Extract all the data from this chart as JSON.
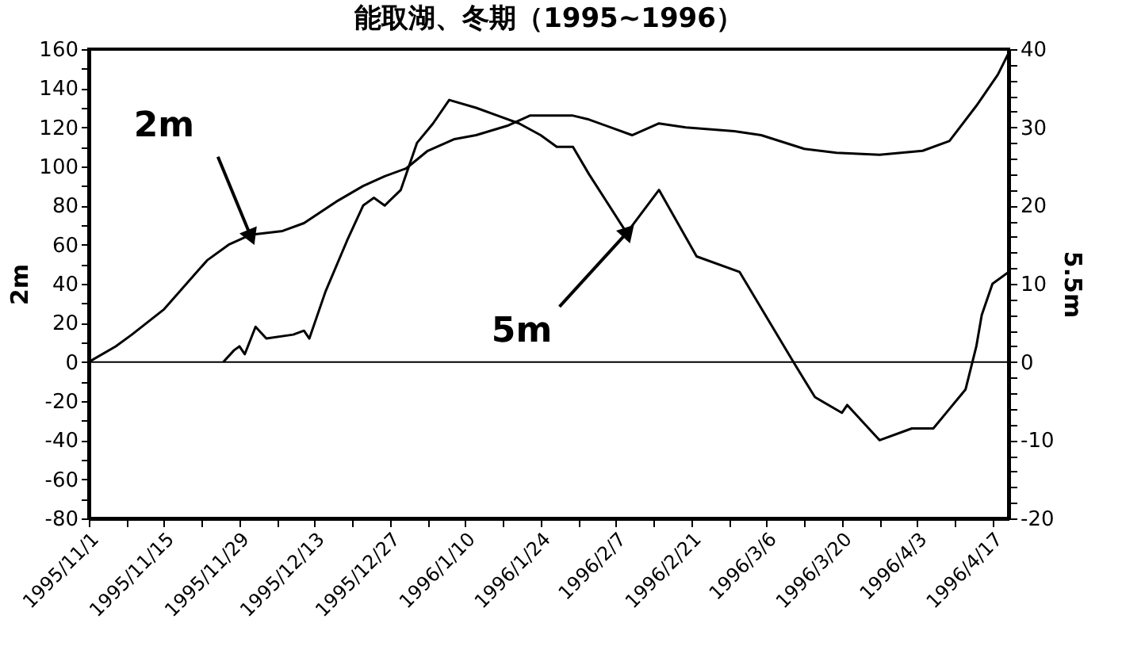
{
  "chart_data": {
    "type": "line",
    "title": "能取湖、冬期（1995~1996）",
    "ylabel": "2m",
    "y2label": "5.5m",
    "xlim": [
      "1995-11-01",
      "1996-04-20"
    ],
    "xticks": [
      {
        "value": "1995-11-01",
        "label": "1995/11/1"
      },
      {
        "value": "1995-11-08",
        "label": null
      },
      {
        "value": "1995-11-15",
        "label": "1995/11/15"
      },
      {
        "value": "1995-11-22",
        "label": null
      },
      {
        "value": "1995-11-29",
        "label": "1995/11/29"
      },
      {
        "value": "1995-12-06",
        "label": null
      },
      {
        "value": "1995-12-13",
        "label": "1995/12/13"
      },
      {
        "value": "1995-12-20",
        "label": null
      },
      {
        "value": "1995-12-27",
        "label": "1995/12/27"
      },
      {
        "value": "1996-01-03",
        "label": null
      },
      {
        "value": "1996-01-10",
        "label": "1996/1/10"
      },
      {
        "value": "1996-01-17",
        "label": null
      },
      {
        "value": "1996-01-24",
        "label": "1996/1/24"
      },
      {
        "value": "1996-01-31",
        "label": null
      },
      {
        "value": "1996-02-07",
        "label": "1996/2/7"
      },
      {
        "value": "1996-02-14",
        "label": null
      },
      {
        "value": "1996-02-21",
        "label": "1996/2/21"
      },
      {
        "value": "1996-02-28",
        "label": null
      },
      {
        "value": "1996-03-06",
        "label": "1996/3/6"
      },
      {
        "value": "1996-03-13",
        "label": null
      },
      {
        "value": "1996-03-20",
        "label": "1996/3/20"
      },
      {
        "value": "1996-03-27",
        "label": null
      },
      {
        "value": "1996-04-03",
        "label": "1996/4/3"
      },
      {
        "value": "1996-04-10",
        "label": null
      },
      {
        "value": "1996-04-17",
        "label": "1996/4/17"
      }
    ],
    "ylim": [
      -80,
      160
    ],
    "yticks": [
      -80,
      {
        "value": -70,
        "label": null
      },
      -60,
      {
        "value": -50,
        "label": null
      },
      -40,
      {
        "value": -30,
        "label": null
      },
      -20,
      {
        "value": -10,
        "label": null
      },
      0,
      {
        "value": 10,
        "label": null
      },
      20,
      {
        "value": 30,
        "label": null
      },
      40,
      {
        "value": 50,
        "label": null
      },
      60,
      {
        "value": 70,
        "label": null
      },
      80,
      {
        "value": 90,
        "label": null
      },
      100,
      {
        "value": 110,
        "label": null
      },
      120,
      {
        "value": 130,
        "label": null
      },
      140,
      {
        "value": 150,
        "label": null
      },
      160
    ],
    "y2lim": [
      -20,
      40
    ],
    "y2ticks": [
      -20,
      {
        "value": -18,
        "label": null
      },
      {
        "value": -16,
        "label": null
      },
      {
        "value": -14,
        "label": null
      },
      {
        "value": -12,
        "label": null
      },
      -10,
      {
        "value": -8,
        "label": null
      },
      {
        "value": -6,
        "label": null
      },
      {
        "value": -4,
        "label": null
      },
      {
        "value": -2,
        "label": null
      },
      0,
      {
        "value": 2,
        "label": null
      },
      {
        "value": 4,
        "label": null
      },
      {
        "value": 6,
        "label": null
      },
      {
        "value": 8,
        "label": null
      },
      10,
      {
        "value": 12,
        "label": null
      },
      {
        "value": 14,
        "label": null
      },
      {
        "value": 16,
        "label": null
      },
      {
        "value": 18,
        "label": null
      },
      20,
      {
        "value": 22,
        "label": null
      },
      {
        "value": 24,
        "label": null
      },
      {
        "value": 26,
        "label": null
      },
      {
        "value": 28,
        "label": null
      },
      30,
      {
        "value": 32,
        "label": null
      },
      {
        "value": 34,
        "label": null
      },
      {
        "value": 36,
        "label": null
      },
      {
        "value": 38,
        "label": null
      },
      40
    ],
    "grid": false,
    "marker": "none",
    "line_style": "solid",
    "ref_lines": [
      {
        "axis": "y",
        "value": 0,
        "color": "#000000"
      }
    ],
    "annotations": [
      {
        "text": "2m",
        "x": "1995-12-01",
        "y": 65
      },
      {
        "text": "5m",
        "x": "1996-02-09",
        "y": 66
      }
    ],
    "series": [
      {
        "color": "#000000",
        "x": [
          "1995-11-01",
          "1995-11-06",
          "1995-11-09",
          "1995-11-15",
          "1995-11-23",
          "1995-11-27",
          "1995-12-01",
          "1995-12-07",
          "1995-12-11",
          "1995-12-17",
          "1995-12-22",
          "1995-12-26",
          "1995-12-30",
          "1996-01-03",
          "1996-01-08",
          "1996-01-12",
          "1996-01-18",
          "1996-01-22",
          "1996-01-30",
          "1996-02-02",
          "1996-02-10",
          "1996-02-15",
          "1996-02-20",
          "1996-02-29",
          "1996-03-05",
          "1996-03-13",
          "1996-03-19",
          "1996-03-27",
          "1996-04-04",
          "1996-04-09",
          "1996-04-14",
          "1996-04-18",
          "1996-04-20"
        ],
        "values": [
          0,
          8,
          14,
          27,
          52,
          60,
          65,
          67,
          71,
          82,
          90,
          95,
          99,
          108,
          114,
          116,
          121,
          126,
          126,
          124,
          116,
          122,
          120,
          118,
          116,
          109,
          107,
          106,
          108,
          113,
          131,
          147,
          158
        ]
      },
      {
        "color": "#000000",
        "axis": "y2",
        "x": [
          "1995-11-26",
          "1995-11-28",
          "1995-11-29",
          "1995-11-30",
          "1995-12-02",
          "1995-12-04",
          "1995-12-09",
          "1995-12-11",
          "1995-12-12",
          "1995-12-15",
          "1995-12-19",
          "1995-12-22",
          "1995-12-24",
          "1995-12-26",
          "1995-12-29",
          "1996-01-01",
          "1996-01-04",
          "1996-01-07",
          "1996-01-12",
          "1996-01-16",
          "1996-01-20",
          "1996-01-24",
          "1996-01-27",
          "1996-01-30",
          "1996-02-02",
          "1996-02-09",
          "1996-02-15",
          "1996-02-22",
          "1996-03-01",
          "1996-03-11",
          "1996-03-15",
          "1996-03-20",
          "1996-03-21",
          "1996-03-27",
          "1996-04-02",
          "1996-04-06",
          "1996-04-09",
          "1996-04-12",
          "1996-04-14",
          "1996-04-15",
          "1996-04-17",
          "1996-04-20"
        ],
        "values": [
          0,
          1.5,
          2,
          1,
          4.5,
          3,
          3.5,
          4,
          3,
          9,
          15.5,
          20,
          21,
          20,
          22,
          28,
          30.5,
          33.5,
          32.5,
          31.5,
          30.5,
          29,
          27.5,
          27.5,
          24,
          16.5,
          22,
          13.5,
          11.5,
          0,
          -4.5,
          -6.5,
          -5.5,
          -10,
          -8.5,
          -8.5,
          -6,
          -3.5,
          2,
          6,
          10,
          11.5
        ]
      }
    ]
  }
}
